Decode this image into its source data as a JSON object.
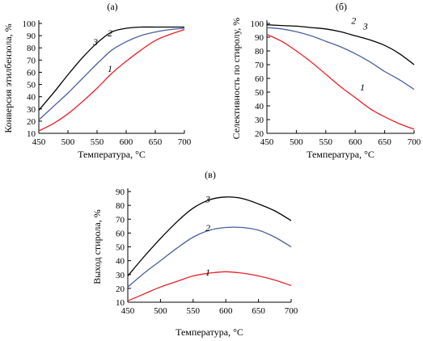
{
  "chart_data": [
    {
      "type": "line",
      "title": "(а)",
      "xlabel": "Температура, °C",
      "ylabel": "Конверсия этилбензола, %",
      "xlim": [
        450,
        700
      ],
      "ylim": [
        10,
        100
      ],
      "xticks": [
        450,
        500,
        550,
        600,
        650,
        700
      ],
      "yticks": [
        10,
        20,
        30,
        40,
        50,
        60,
        70,
        80,
        90,
        100
      ],
      "series": [
        {
          "name": "1",
          "color": "#e8202a",
          "x": [
            450,
            475,
            500,
            525,
            550,
            575,
            600,
            625,
            650,
            675,
            700
          ],
          "y": [
            12,
            18,
            26,
            36,
            47,
            59,
            69,
            78,
            86,
            91,
            95
          ]
        },
        {
          "name": "2",
          "color": "#4a5fa0",
          "x": [
            450,
            475,
            500,
            525,
            550,
            575,
            600,
            625,
            650,
            675,
            700
          ],
          "y": [
            21,
            32,
            43,
            55,
            67,
            78,
            85,
            90,
            93,
            95,
            96
          ]
        },
        {
          "name": "3",
          "color": "#000000",
          "x": [
            450,
            475,
            500,
            525,
            550,
            575,
            600,
            625,
            650,
            675,
            700
          ],
          "y": [
            29,
            43,
            58,
            72,
            84,
            93,
            96,
            97,
            97,
            97,
            97
          ]
        }
      ]
    },
    {
      "type": "line",
      "title": "(б)",
      "xlabel": "Температура, °C",
      "ylabel": "Селективность по стиролу, %",
      "xlim": [
        450,
        700
      ],
      "ylim": [
        20,
        100
      ],
      "xticks": [
        450,
        500,
        550,
        600,
        650,
        700
      ],
      "yticks": [
        20,
        30,
        40,
        50,
        60,
        70,
        80,
        90,
        100
      ],
      "series": [
        {
          "name": "1",
          "color": "#e8202a",
          "x": [
            450,
            475,
            500,
            525,
            550,
            575,
            600,
            625,
            650,
            675,
            700
          ],
          "y": [
            92,
            87,
            80,
            72,
            63,
            54,
            46,
            38,
            32,
            27,
            23
          ]
        },
        {
          "name": "2",
          "color": "#4a5fa0",
          "x": [
            450,
            475,
            500,
            525,
            550,
            575,
            600,
            625,
            650,
            675,
            700
          ],
          "y": [
            97,
            96,
            94,
            91,
            87,
            83,
            78,
            72,
            65,
            59,
            52
          ]
        },
        {
          "name": "3",
          "color": "#000000",
          "x": [
            450,
            475,
            500,
            525,
            550,
            575,
            600,
            625,
            650,
            675,
            700
          ],
          "y": [
            99,
            98.5,
            98,
            97,
            96,
            94,
            91,
            88,
            84,
            78,
            70
          ]
        }
      ]
    },
    {
      "type": "line",
      "title": "(в)",
      "xlabel": "Температура, °C",
      "ylabel": "Выход стирола, %",
      "xlim": [
        450,
        700
      ],
      "ylim": [
        10,
        90
      ],
      "xticks": [
        450,
        500,
        550,
        600,
        650,
        700
      ],
      "yticks": [
        10,
        20,
        30,
        40,
        50,
        60,
        70,
        80,
        90
      ],
      "series": [
        {
          "name": "1",
          "color": "#e8202a",
          "x": [
            450,
            475,
            500,
            525,
            550,
            575,
            600,
            625,
            650,
            675,
            700
          ],
          "y": [
            11,
            16,
            21,
            25,
            29,
            31,
            32,
            31,
            29,
            26,
            22
          ]
        },
        {
          "name": "2",
          "color": "#4a5fa0",
          "x": [
            450,
            475,
            500,
            525,
            550,
            575,
            600,
            625,
            650,
            675,
            700
          ],
          "y": [
            21,
            31,
            40,
            49,
            57,
            62,
            64,
            64,
            62,
            57,
            50
          ]
        },
        {
          "name": "3",
          "color": "#000000",
          "x": [
            450,
            475,
            500,
            525,
            550,
            575,
            600,
            625,
            650,
            675,
            700
          ],
          "y": [
            29,
            43,
            56,
            68,
            78,
            84,
            86,
            85,
            81,
            76,
            69
          ]
        }
      ]
    }
  ]
}
